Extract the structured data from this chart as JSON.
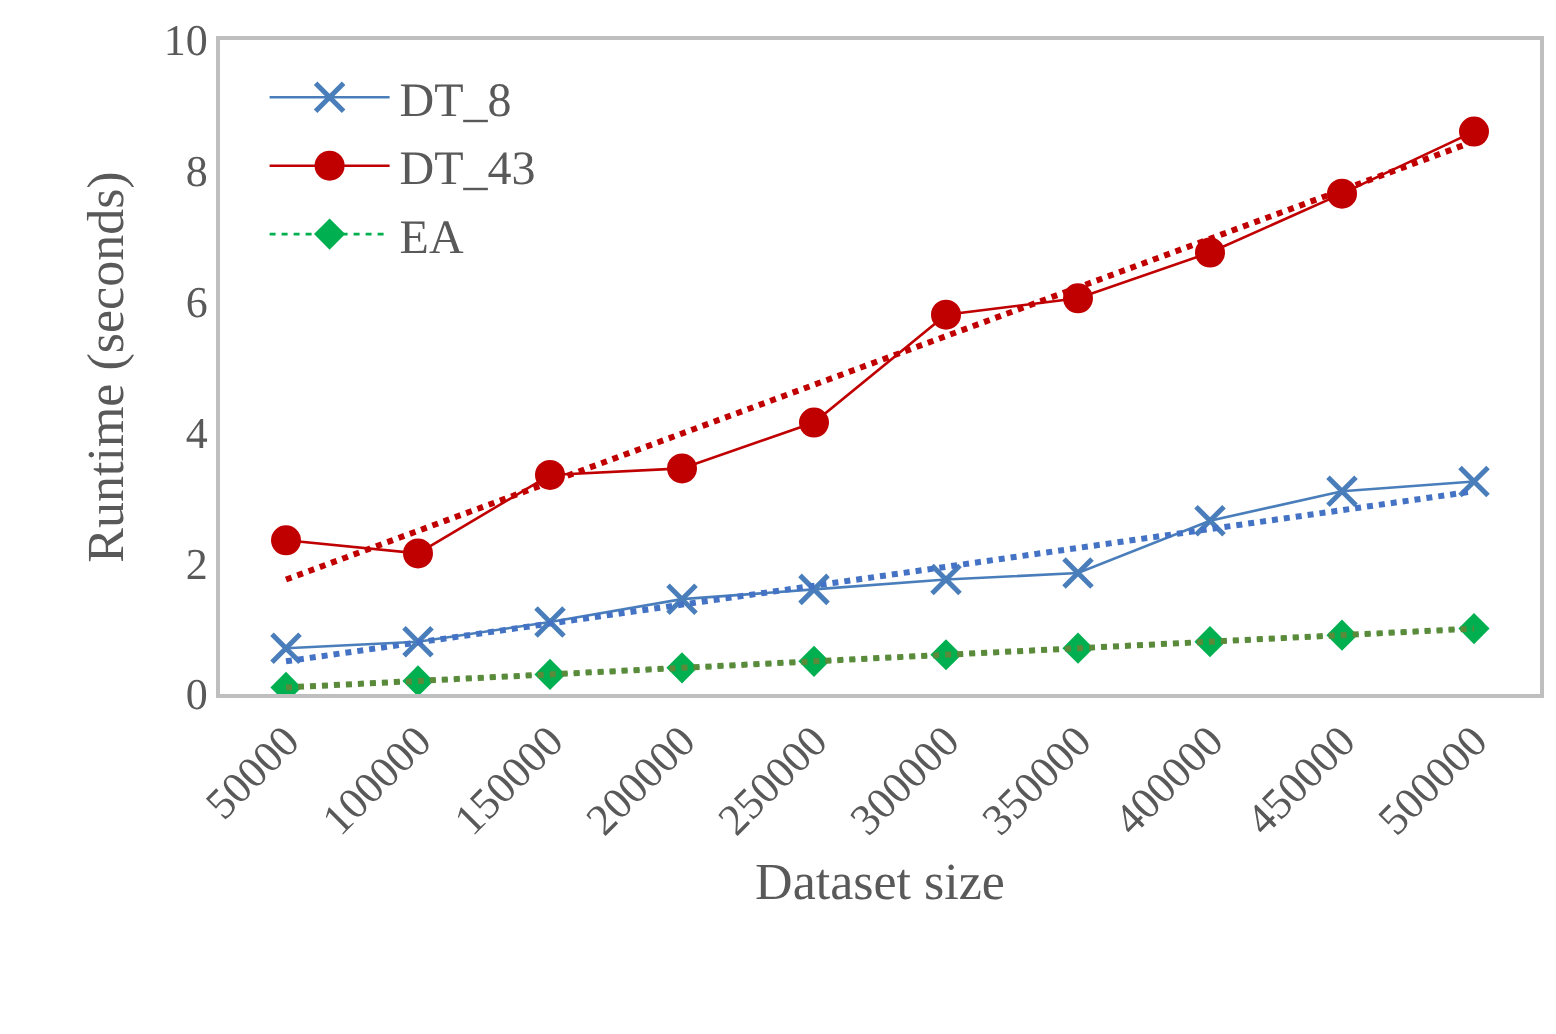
{
  "chart_data": {
    "type": "line",
    "xlabel": "Dataset size",
    "ylabel": "Runtime (seconds)",
    "categories": [
      "50000",
      "100000",
      "150000",
      "200000",
      "250000",
      "300000",
      "350000",
      "400000",
      "450000",
      "500000"
    ],
    "ylim": [
      0,
      10
    ],
    "yticks": [
      0,
      2,
      4,
      6,
      8,
      10
    ],
    "grid": false,
    "legend": "top left",
    "series": [
      {
        "name": "DT_8",
        "color": "#4a7ebb",
        "marker": "cross",
        "line_style": "solid",
        "values": [
          0.7,
          0.8,
          1.1,
          1.45,
          1.6,
          1.75,
          1.85,
          2.65,
          3.1,
          3.25
        ]
      },
      {
        "name": "DT_43",
        "color": "#c00000",
        "marker": "circle",
        "line_style": "solid",
        "values": [
          2.35,
          2.15,
          3.35,
          3.45,
          4.15,
          5.8,
          6.05,
          6.75,
          7.65,
          8.6
        ]
      },
      {
        "name": "EA",
        "color": "#00b050",
        "marker": "diamond",
        "line_style": "dotted",
        "values": [
          0.1,
          0.2,
          0.3,
          0.4,
          0.5,
          0.6,
          0.7,
          0.8,
          0.9,
          1.0
        ]
      },
      {
        "type": "line",
        "color": "#4472c4",
        "marker": "none",
        "line_style": "dotted",
        "x": [
          "50000",
          "500000"
        ],
        "values": [
          0.5,
          3.1
        ]
      },
      {
        "type": "line",
        "color": "#c00000",
        "marker": "none",
        "line_style": "dotted",
        "x": [
          "50000",
          "500000"
        ],
        "values": [
          1.75,
          8.45
        ]
      },
      {
        "type": "line",
        "color": "#5a8a3a",
        "marker": "none",
        "line_style": "dotted",
        "x": [
          "50000",
          "500000"
        ],
        "values": [
          0.1,
          1.0
        ]
      }
    ]
  }
}
